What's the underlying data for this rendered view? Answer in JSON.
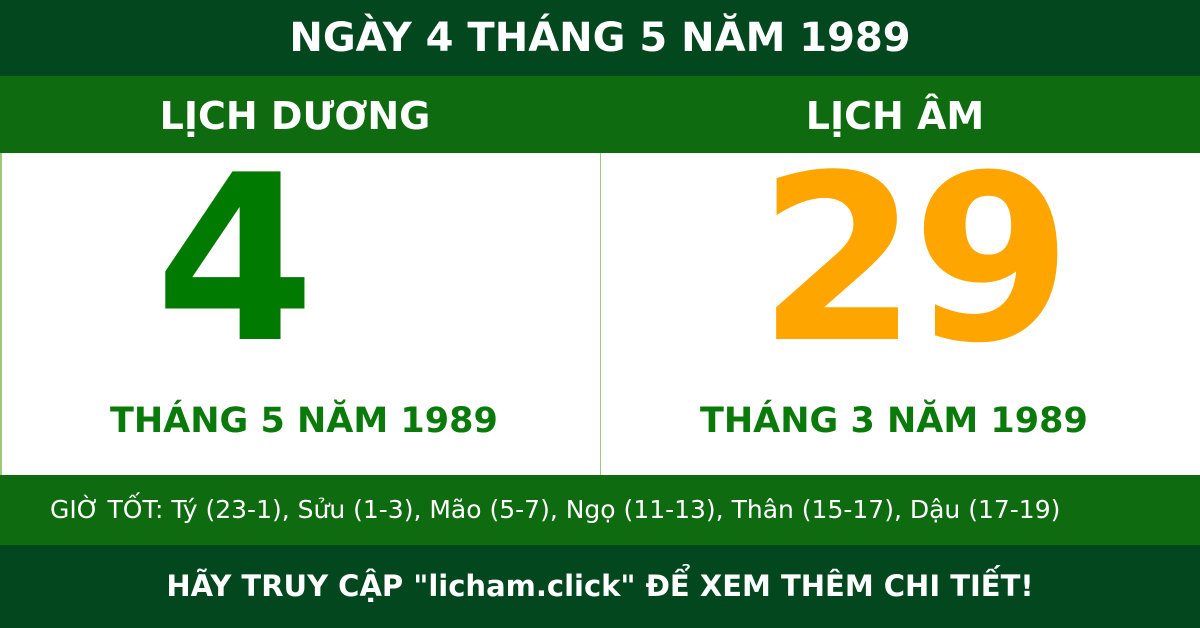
{
  "title": "NGÀY 4 THÁNG 5 NĂM 1989",
  "solar": {
    "heading": "LỊCH DƯƠNG",
    "day": "4",
    "month_year": "THÁNG 5 NĂM 1989"
  },
  "lunar": {
    "heading": "LỊCH ÂM",
    "day": "29",
    "month_year": "THÁNG 3 NĂM 1989"
  },
  "good_hours": "GIỜ TỐT: Tý (23-1), Sửu (1-3), Mão (5-7), Ngọ (11-13), Thân (15-17), Dậu (17-19)",
  "footer": "HÃY TRUY CẬP \"licham.click\" ĐỂ XEM THÊM CHI TIẾT!",
  "colors": {
    "dark_green": "#03471f",
    "green": "#0f6b0f",
    "solar_day": "#007a00",
    "lunar_day": "#ffa500"
  }
}
